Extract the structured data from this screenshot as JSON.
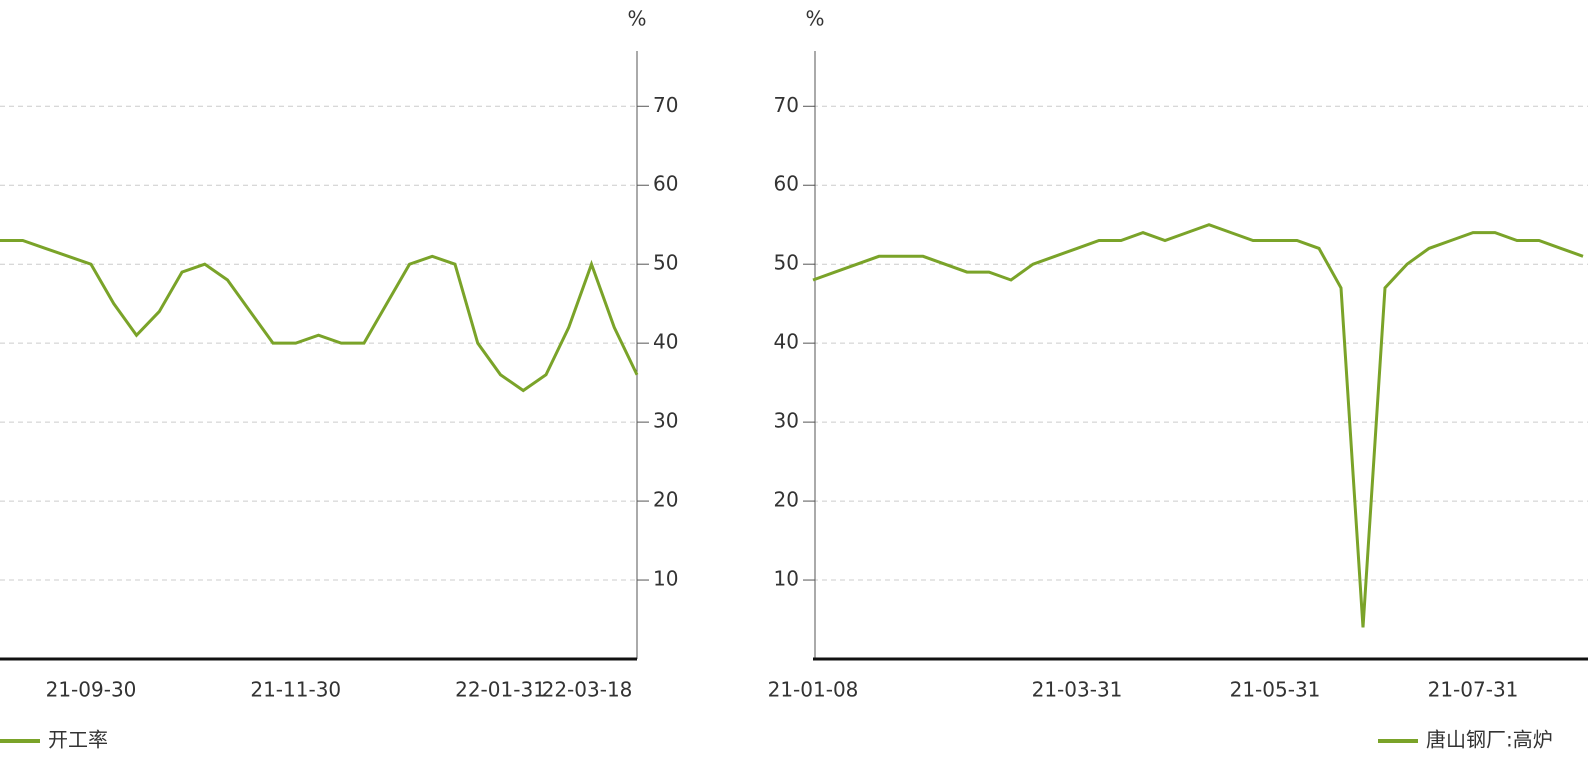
{
  "chart_data": [
    {
      "type": "line",
      "unit": "%",
      "axis_side": "right",
      "categories": [
        null,
        null,
        null,
        null,
        "21-09-30",
        null,
        null,
        null,
        null,
        null,
        null,
        null,
        null,
        "21-11-30",
        null,
        null,
        null,
        null,
        null,
        null,
        null,
        null,
        "22-01-31",
        null,
        null,
        null,
        null,
        null,
        "22-03-18"
      ],
      "series": [
        {
          "name": "开工率",
          "color": "#7aa329",
          "values": [
            53,
            53,
            52,
            51,
            50,
            45,
            41,
            44,
            49,
            50,
            48,
            44,
            40,
            40,
            41,
            40,
            40,
            45,
            50,
            51,
            50,
            40,
            36,
            34,
            36,
            42,
            50,
            42,
            36
          ]
        }
      ],
      "ylim": [
        0,
        77
      ],
      "yticks": [
        10,
        20,
        30,
        40,
        50,
        60,
        70
      ],
      "grid": true
    },
    {
      "type": "line",
      "unit": "%",
      "axis_side": "left",
      "categories": [
        "21-01-08",
        null,
        null,
        null,
        null,
        null,
        null,
        null,
        null,
        null,
        null,
        null,
        "21-03-31",
        null,
        null,
        null,
        null,
        null,
        null,
        null,
        null,
        "21-05-31",
        null,
        null,
        null,
        null,
        null,
        null,
        null,
        null,
        "21-07-31",
        null,
        null,
        null,
        null,
        null
      ],
      "series": [
        {
          "name": "唐山钢厂:高炉",
          "color": "#7aa329",
          "values": [
            48,
            49,
            50,
            51,
            51,
            51,
            50,
            49,
            49,
            48,
            50,
            51,
            52,
            53,
            53,
            54,
            53,
            54,
            55,
            54,
            53,
            53,
            53,
            52,
            47,
            4,
            47,
            50,
            52,
            53,
            54,
            54,
            53,
            53,
            52,
            51
          ]
        }
      ],
      "ylim": [
        0,
        77
      ],
      "yticks": [
        10,
        20,
        30,
        40,
        50,
        60,
        70
      ],
      "grid": true
    }
  ]
}
